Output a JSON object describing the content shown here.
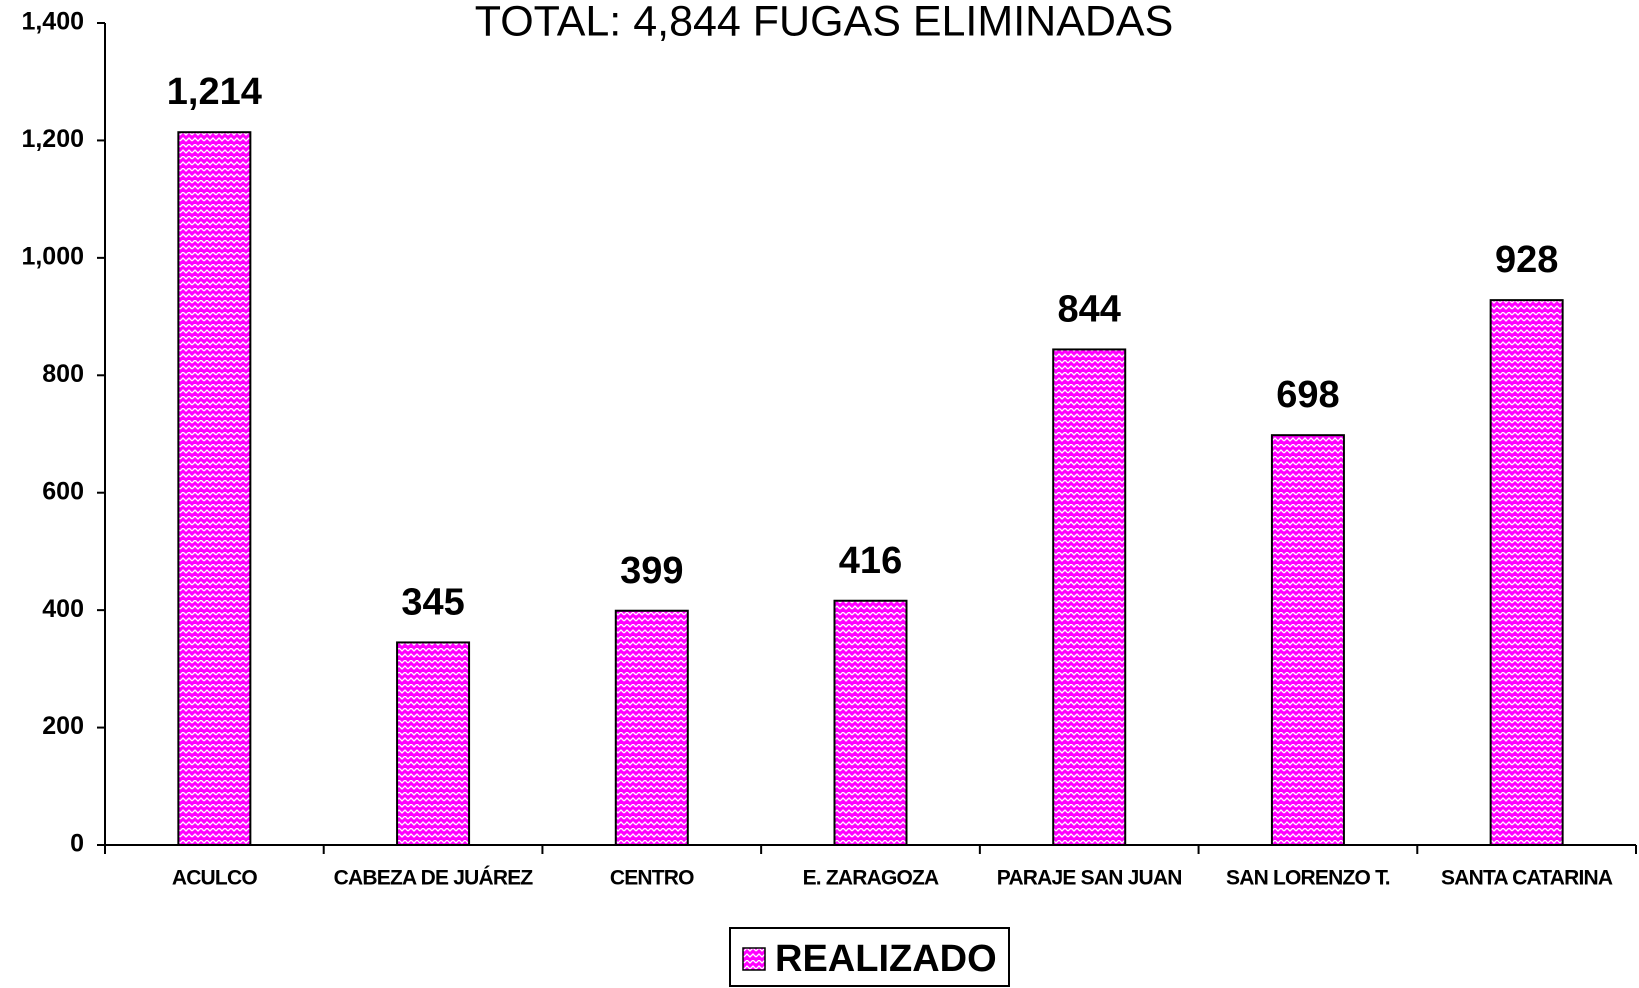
{
  "chart_data": {
    "type": "bar",
    "title": "TOTAL: 4,844 FUGAS ELIMINADAS",
    "categories": [
      "ACULCO",
      "CABEZA DE JUÁREZ",
      "CENTRO",
      "E. ZARAGOZA",
      "PARAJE SAN JUAN",
      "SAN LORENZO T.",
      "SANTA CATARINA"
    ],
    "series": [
      {
        "name": "REALIZADO",
        "color": "#ff00ff",
        "values": [
          1214,
          345,
          399,
          416,
          844,
          698,
          928
        ],
        "value_labels": [
          "1,214",
          "345",
          "399",
          "416",
          "844",
          "698",
          "928"
        ]
      }
    ],
    "ylim": [
      0,
      1400
    ],
    "yticks": [
      0,
      200,
      400,
      600,
      800,
      {
        "value": 1000,
        "label": "1,000"
      },
      {
        "value": 1200,
        "label": "1,200"
      },
      {
        "value": 1400,
        "label": "1,400"
      }
    ],
    "grid": false
  }
}
